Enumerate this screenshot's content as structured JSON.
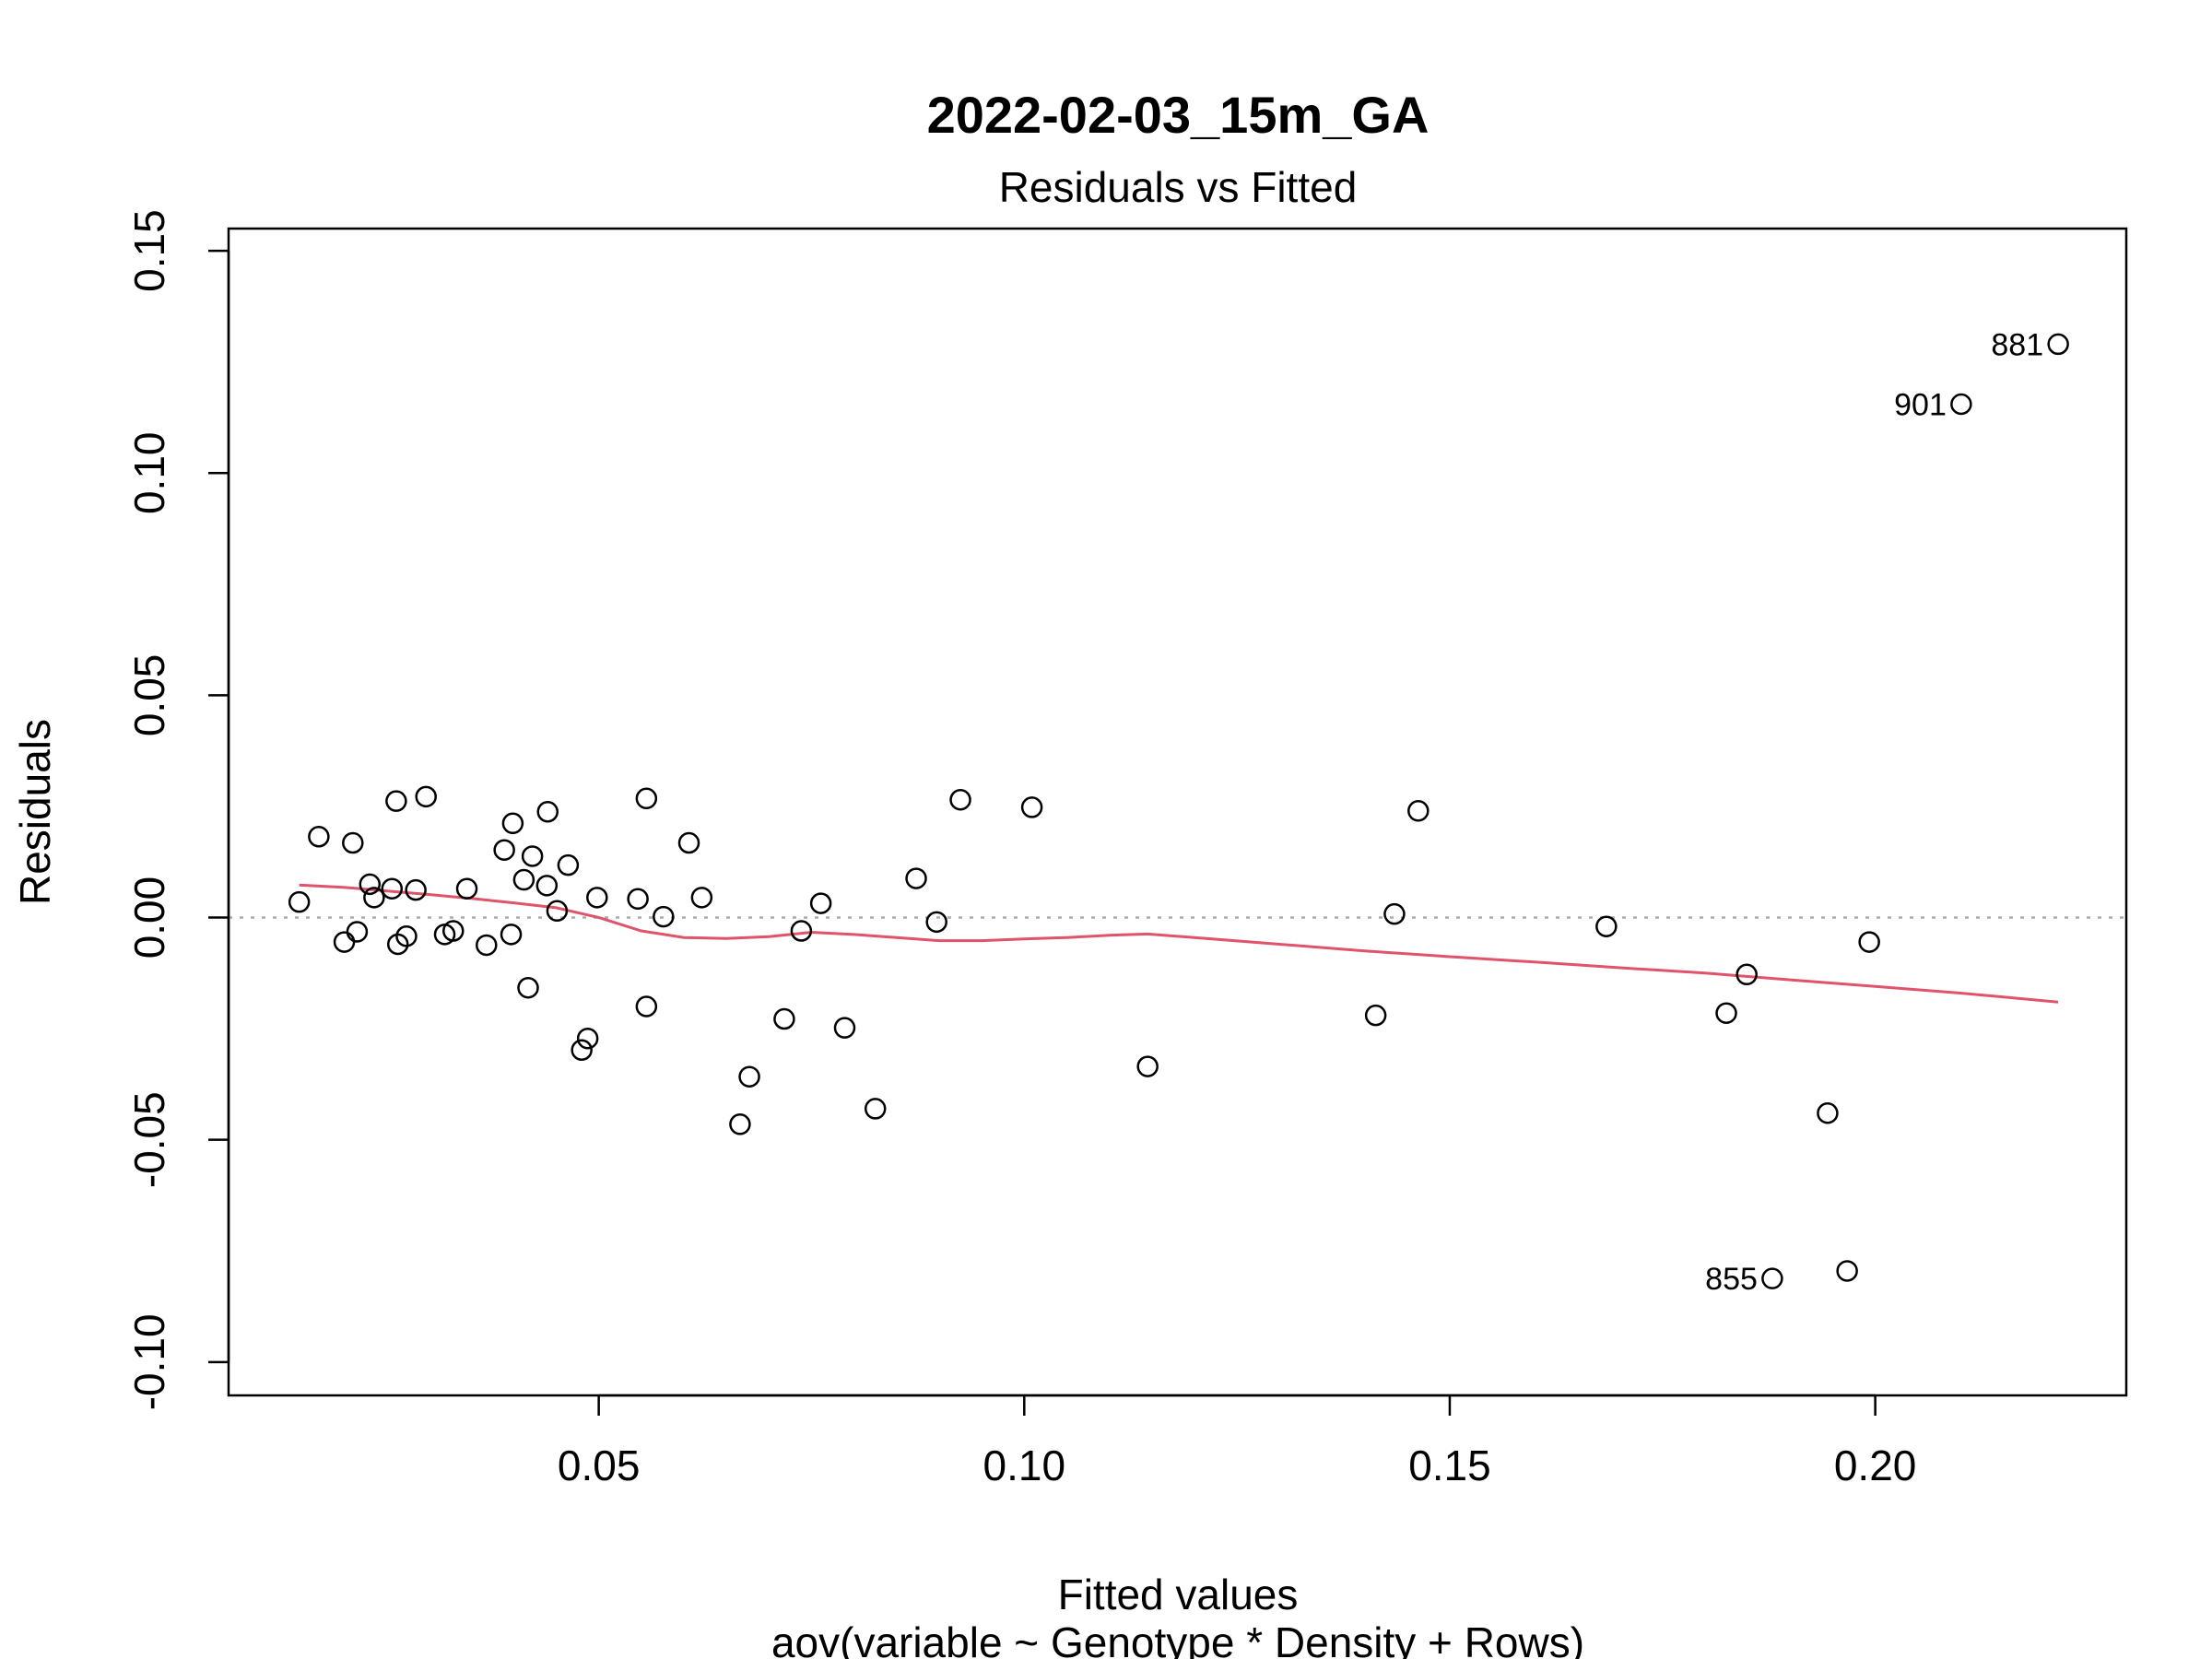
{
  "chart_data": {
    "type": "scatter",
    "title": "2022-02-03_15m_GA",
    "subtitle": "Residuals vs Fitted",
    "xlabel": "Fitted values",
    "xlabel_sub": "aov(variable ~ Genotype * Density + Rows)",
    "ylabel": "Residuals",
    "xlim": [
      0.0065,
      0.2295
    ],
    "ylim": [
      -0.1075,
      0.155
    ],
    "x_ticks": [
      {
        "value": 0.05,
        "label": "0.05"
      },
      {
        "value": 0.1,
        "label": "0.10"
      },
      {
        "value": 0.15,
        "label": "0.15"
      },
      {
        "value": 0.2,
        "label": "0.20"
      }
    ],
    "y_ticks": [
      {
        "value": -0.1,
        "label": "-0.10"
      },
      {
        "value": -0.05,
        "label": "-0.05"
      },
      {
        "value": 0.0,
        "label": "0.00"
      },
      {
        "value": 0.05,
        "label": "0.05"
      },
      {
        "value": 0.1,
        "label": "0.10"
      },
      {
        "value": 0.15,
        "label": "0.15"
      }
    ],
    "reference_line": {
      "y": 0,
      "style": "dotted",
      "color": "#aaaaaa"
    },
    "points": [
      {
        "x": 0.0148,
        "y": 0.0035
      },
      {
        "x": 0.0171,
        "y": 0.0182
      },
      {
        "x": 0.0201,
        "y": -0.0055
      },
      {
        "x": 0.0211,
        "y": 0.0168
      },
      {
        "x": 0.0216,
        "y": -0.0032
      },
      {
        "x": 0.0231,
        "y": 0.0075
      },
      {
        "x": 0.0236,
        "y": 0.0045
      },
      {
        "x": 0.0257,
        "y": 0.0065
      },
      {
        "x": 0.0262,
        "y": 0.0262
      },
      {
        "x": 0.0264,
        "y": -0.006
      },
      {
        "x": 0.0274,
        "y": -0.0042
      },
      {
        "x": 0.0285,
        "y": 0.0062
      },
      {
        "x": 0.0297,
        "y": 0.0272
      },
      {
        "x": 0.0319,
        "y": -0.0038
      },
      {
        "x": 0.0329,
        "y": -0.003
      },
      {
        "x": 0.0345,
        "y": 0.0065
      },
      {
        "x": 0.0368,
        "y": -0.0062
      },
      {
        "x": 0.0389,
        "y": 0.0152
      },
      {
        "x": 0.0397,
        "y": -0.0038
      },
      {
        "x": 0.0399,
        "y": 0.0212
      },
      {
        "x": 0.0412,
        "y": 0.0085
      },
      {
        "x": 0.0417,
        "y": -0.0158
      },
      {
        "x": 0.0422,
        "y": 0.0138
      },
      {
        "x": 0.0439,
        "y": 0.0072
      },
      {
        "x": 0.044,
        "y": 0.0238
      },
      {
        "x": 0.0451,
        "y": 0.0015
      },
      {
        "x": 0.0464,
        "y": 0.0118
      },
      {
        "x": 0.048,
        "y": -0.0298
      },
      {
        "x": 0.0487,
        "y": -0.0272
      },
      {
        "x": 0.0498,
        "y": 0.0045
      },
      {
        "x": 0.0546,
        "y": 0.0042
      },
      {
        "x": 0.0556,
        "y": -0.02
      },
      {
        "x": 0.0556,
        "y": 0.0268
      },
      {
        "x": 0.0576,
        "y": 0.0002
      },
      {
        "x": 0.0606,
        "y": 0.0168
      },
      {
        "x": 0.0621,
        "y": 0.0045
      },
      {
        "x": 0.0666,
        "y": -0.0465
      },
      {
        "x": 0.0677,
        "y": -0.0358
      },
      {
        "x": 0.0718,
        "y": -0.0228
      },
      {
        "x": 0.0738,
        "y": -0.003
      },
      {
        "x": 0.0761,
        "y": 0.0032
      },
      {
        "x": 0.0789,
        "y": -0.0248
      },
      {
        "x": 0.0825,
        "y": -0.043
      },
      {
        "x": 0.0873,
        "y": 0.0088
      },
      {
        "x": 0.0897,
        "y": -0.001
      },
      {
        "x": 0.0925,
        "y": 0.0265
      },
      {
        "x": 0.1009,
        "y": 0.0248
      },
      {
        "x": 0.1145,
        "y": -0.0335
      },
      {
        "x": 0.1413,
        "y": -0.022
      },
      {
        "x": 0.1435,
        "y": 0.0008
      },
      {
        "x": 0.1463,
        "y": 0.024
      },
      {
        "x": 0.1684,
        "y": -0.002
      },
      {
        "x": 0.1825,
        "y": -0.0215
      },
      {
        "x": 0.1849,
        "y": -0.0128
      },
      {
        "x": 0.1879,
        "y": -0.0812,
        "label": "855"
      },
      {
        "x": 0.1944,
        "y": -0.044
      },
      {
        "x": 0.1967,
        "y": -0.0795
      },
      {
        "x": 0.1993,
        "y": -0.0055
      },
      {
        "x": 0.2101,
        "y": 0.1155,
        "label": "901"
      },
      {
        "x": 0.2215,
        "y": 0.129,
        "label": "881"
      }
    ],
    "smooth_line": {
      "color": "#df536b",
      "points": [
        [
          0.0148,
          0.0073
        ],
        [
          0.02,
          0.0068
        ],
        [
          0.025,
          0.006
        ],
        [
          0.03,
          0.0052
        ],
        [
          0.035,
          0.0043
        ],
        [
          0.04,
          0.0033
        ],
        [
          0.045,
          0.0022
        ],
        [
          0.05,
          0.0
        ],
        [
          0.055,
          -0.003
        ],
        [
          0.06,
          -0.0045
        ],
        [
          0.065,
          -0.0047
        ],
        [
          0.07,
          -0.0043
        ],
        [
          0.075,
          -0.0033
        ],
        [
          0.08,
          -0.0038
        ],
        [
          0.085,
          -0.0045
        ],
        [
          0.09,
          -0.0052
        ],
        [
          0.095,
          -0.0052
        ],
        [
          0.1,
          -0.0048
        ],
        [
          0.105,
          -0.0045
        ],
        [
          0.11,
          -0.004
        ],
        [
          0.1145,
          -0.0037
        ],
        [
          0.12,
          -0.0045
        ],
        [
          0.13,
          -0.006
        ],
        [
          0.14,
          -0.0075
        ],
        [
          0.15,
          -0.0088
        ],
        [
          0.16,
          -0.01
        ],
        [
          0.17,
          -0.0113
        ],
        [
          0.18,
          -0.0125
        ],
        [
          0.19,
          -0.014
        ],
        [
          0.2,
          -0.0155
        ],
        [
          0.21,
          -0.017
        ],
        [
          0.2215,
          -0.019
        ]
      ]
    }
  }
}
